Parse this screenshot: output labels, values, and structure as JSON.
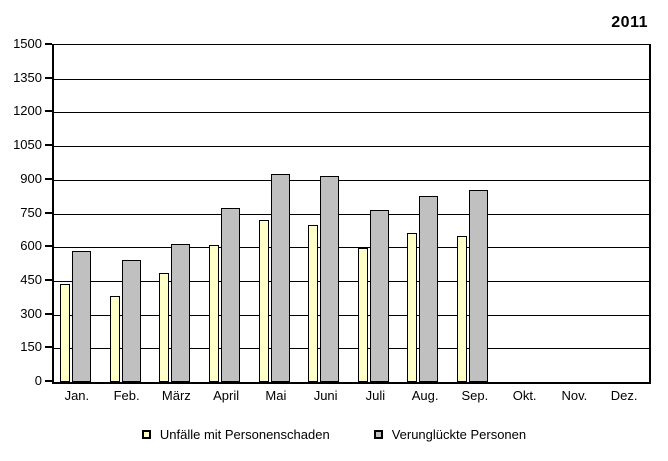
{
  "chart_data": {
    "type": "bar",
    "title": "2011",
    "categories": [
      "Jan.",
      "Feb.",
      "März",
      "April",
      "Mai",
      "Juni",
      "Juli",
      "Aug.",
      "Sep.",
      "Okt.",
      "Nov.",
      "Dez."
    ],
    "series": [
      {
        "name": "Unfälle mit Personenschaden",
        "color": "#FFFFC8",
        "values": [
          435,
          385,
          485,
          610,
          720,
          700,
          595,
          665,
          650,
          null,
          null,
          null
        ]
      },
      {
        "name": "Verunglückte Personen",
        "color": "#C0C0C0",
        "values": [
          585,
          545,
          615,
          775,
          925,
          915,
          765,
          830,
          855,
          null,
          null,
          null
        ]
      }
    ],
    "xlabel": "",
    "ylabel": "",
    "ylim": [
      0,
      1500
    ],
    "ytick_step": 150,
    "yticks": [
      "1500",
      "1350",
      "1200",
      "1050",
      "900",
      "750",
      "600",
      "450",
      "300",
      "150",
      "0"
    ],
    "grid": "horizontal",
    "legend_position": "bottom",
    "background_color": "#FFFFFF",
    "axis_color": "#000000",
    "bar_border_color": "#000000"
  }
}
